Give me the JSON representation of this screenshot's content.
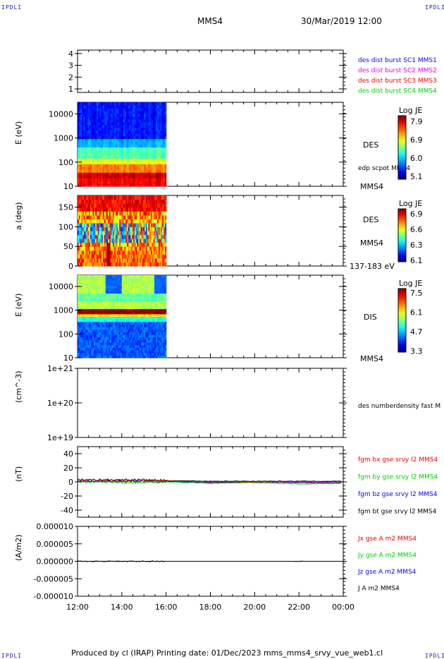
{
  "header": {
    "logo_left": "IPDLI",
    "logo_right": "IPDLI",
    "spacecraft": "MMS4",
    "datetime": "30/Mar/2019 12:00"
  },
  "footer": {
    "logo_left": "IPDLI",
    "logo_right": "IPDLI",
    "text": "Produced by cl (IRAP)   Printing date: 01/Dec/2023   mms_mms4_srvy_vue_web1.cl"
  },
  "colors": {
    "blue": "#0000ff",
    "magenta": "#dd00dd",
    "red": "#ee0000",
    "green": "#00cc00",
    "black": "#000000"
  },
  "chart_data": [
    {
      "type": "line",
      "id": "burst",
      "yticks": [
        "1",
        "2",
        "3",
        "4"
      ],
      "legend": [
        {
          "name": "des dist burst SC1 MMS1",
          "color": "#0000ff"
        },
        {
          "name": "des dist burst SC2 MMS2",
          "color": "#dd00dd"
        },
        {
          "name": "des dist burst SC3 MMS3",
          "color": "#ee0000"
        },
        {
          "name": "des dist burst SC4 MMS4",
          "color": "#00cc00"
        }
      ]
    },
    {
      "type": "heatmap",
      "id": "des_energy",
      "ylabel": "E (eV)",
      "yscale": "log",
      "ylim": [
        10,
        30000
      ],
      "yticks": [
        "10000",
        "1000",
        "100",
        "10"
      ],
      "label": "DES",
      "sublabel": "edp scpot MMS4",
      "bottom_label": "MMS4",
      "colorbar": {
        "title": "Log JE",
        "ticks": [
          "7.9",
          "6.9",
          "6.0",
          "5.1"
        ]
      },
      "data_x_range": [
        "12:00",
        "16:00"
      ]
    },
    {
      "type": "heatmap",
      "id": "des_pitch",
      "ylabel": "a (deg)",
      "ylim": [
        0,
        180
      ],
      "yticks": [
        "150",
        "100",
        "50",
        "0"
      ],
      "label": "DES",
      "sublabel": "MMS4",
      "bottom_label": "137-183 eV",
      "colorbar": {
        "title": "Log JE",
        "ticks": [
          "6.9",
          "6.6",
          "6.3",
          "6.1"
        ]
      },
      "data_x_range": [
        "12:00",
        "16:00"
      ]
    },
    {
      "type": "heatmap",
      "id": "dis_energy",
      "ylabel": "E (eV)",
      "yscale": "log",
      "ylim": [
        10,
        30000
      ],
      "yticks": [
        "10000",
        "1000",
        "100",
        "10"
      ],
      "label": "DIS",
      "bottom_label": "MMS4",
      "colorbar": {
        "title": "Log JE",
        "ticks": [
          "7.5",
          "6.1",
          "4.7",
          "3.3"
        ]
      },
      "data_x_range": [
        "12:00",
        "16:00"
      ]
    },
    {
      "type": "line",
      "id": "density",
      "ylabel": "(cm^-3)",
      "yscale": "log",
      "yticks": [
        "1e+21",
        "1e+20",
        "1e+19"
      ],
      "legend": [
        {
          "name": "des numberdensity fast M",
          "color": "#000000"
        }
      ]
    },
    {
      "type": "line",
      "id": "fgm",
      "ylabel": "(nT)",
      "ylim": [
        -50,
        50
      ],
      "yticks": [
        "40",
        "20",
        "0",
        "-20",
        "-40"
      ],
      "legend": [
        {
          "name": "fgm bx gse srvy l2 MMS4",
          "color": "#ee0000"
        },
        {
          "name": "fgm by gse srvy l2 MMS4",
          "color": "#00cc00"
        },
        {
          "name": "fgm bz gse srvy l2 MMS4",
          "color": "#0000ff"
        },
        {
          "name": "fgm bt gse srvy l2 MMS4",
          "color": "#000000"
        }
      ],
      "series": [
        {
          "name": "fgm bt gse srvy l2 MMS4",
          "x": [
            12,
            13,
            14,
            15,
            16,
            18,
            20,
            22,
            24
          ],
          "values": [
            3,
            3,
            3,
            3,
            2,
            1,
            1,
            1,
            1
          ]
        },
        {
          "name": "fgm bz gse srvy l2 MMS4",
          "x": [
            12,
            13,
            14,
            15,
            16,
            18,
            20,
            22,
            24
          ],
          "values": [
            1,
            1,
            1,
            1,
            0,
            -1,
            0,
            -1,
            -1
          ]
        },
        {
          "name": "fgm by gse srvy l2 MMS4",
          "x": [
            12,
            13,
            14,
            15,
            16,
            18,
            20,
            22,
            24
          ],
          "values": [
            0,
            0,
            -1,
            -1,
            0,
            -2,
            -1,
            -3,
            -2
          ]
        },
        {
          "name": "fgm bx gse srvy l2 MMS4",
          "x": [
            12,
            13,
            14,
            15,
            16,
            18,
            20,
            22,
            24
          ],
          "values": [
            1,
            1,
            1,
            1,
            1,
            0,
            0,
            0,
            0
          ]
        }
      ]
    },
    {
      "type": "line",
      "id": "current",
      "ylabel": "(A/m2)",
      "ylim": [
        -1e-05,
        1e-05
      ],
      "yticks": [
        "0.000010",
        "0.000005",
        "0.000000",
        "-0.000005",
        "-0.000010"
      ],
      "legend": [
        {
          "name": "Jx gse A m2 MMS4",
          "color": "#ee0000"
        },
        {
          "name": "Jy gse A m2 MMS4",
          "color": "#00cc00"
        },
        {
          "name": "Jz gse A m2 MMS4",
          "color": "#0000ff"
        },
        {
          "name": "J A m2 MMS4",
          "color": "#000000"
        }
      ],
      "xticks": [
        "12:00",
        "14:00",
        "16:00",
        "18:00",
        "20:00",
        "22:00",
        "00:00"
      ]
    }
  ]
}
